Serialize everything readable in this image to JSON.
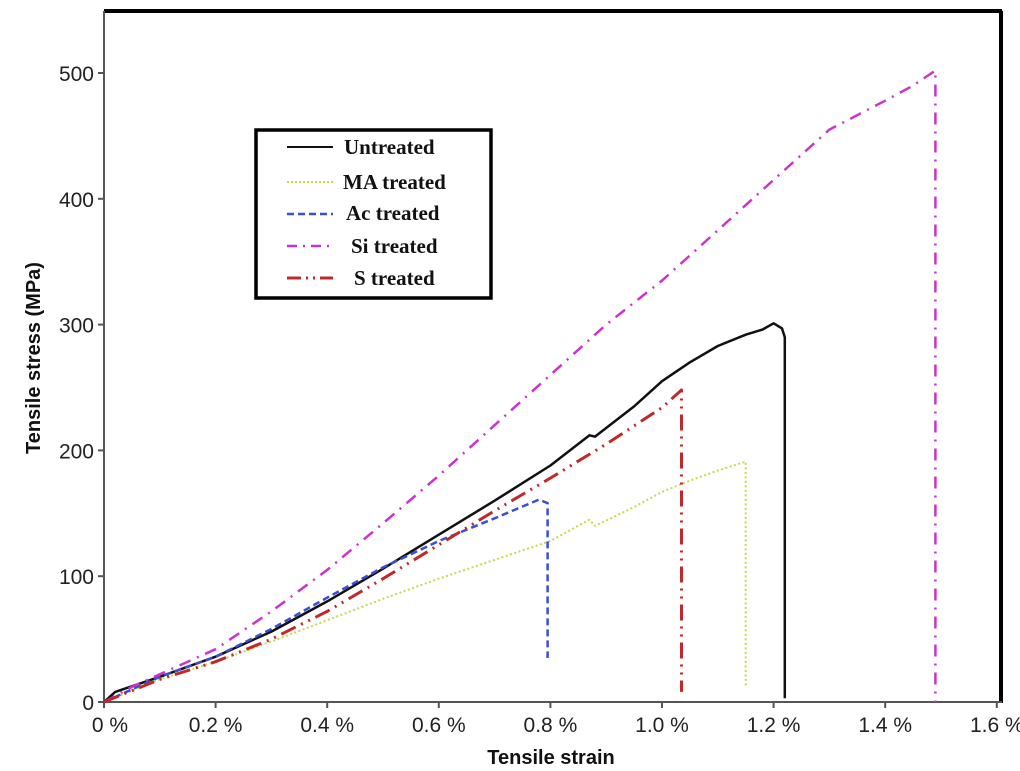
{
  "chart_data": {
    "type": "line",
    "title": "",
    "xlabel": "Tensile strain",
    "ylabel": "Tensile stress (MPa)",
    "xlim": [
      0,
      1.6
    ],
    "ylim": [
      0,
      550
    ],
    "x_unit": "%",
    "x_ticks": [
      "0 %",
      "0.2 %",
      "0.4 %",
      "0.6 %",
      "0.8 %",
      "1.0 %",
      "1.2 %",
      "1.4 %",
      "1.6 %"
    ],
    "x_tick_values": [
      0,
      0.2,
      0.4,
      0.6,
      0.8,
      1.0,
      1.2,
      1.4,
      1.6
    ],
    "y_ticks": [
      "0",
      "100",
      "200",
      "300",
      "400",
      "500"
    ],
    "y_tick_values": [
      0,
      100,
      200,
      300,
      400,
      500
    ],
    "grid": false,
    "legend_position": "upper-left-inside",
    "series": [
      {
        "name": "Untreated",
        "color": "#111111",
        "style": "solid",
        "x": [
          0,
          0.02,
          0.1,
          0.2,
          0.3,
          0.4,
          0.5,
          0.6,
          0.7,
          0.8,
          0.87,
          0.88,
          0.95,
          1.0,
          1.05,
          1.1,
          1.15,
          1.18,
          1.2,
          1.215,
          1.22,
          1.22
        ],
        "y": [
          0,
          8,
          20,
          36,
          56,
          80,
          106,
          133,
          160,
          188,
          212,
          211,
          235,
          255,
          270,
          283,
          292,
          296,
          301,
          297,
          290,
          3
        ]
      },
      {
        "name": "MA treated",
        "color": "#c8d84a",
        "style": "dotted",
        "x": [
          0,
          0.1,
          0.2,
          0.3,
          0.4,
          0.5,
          0.6,
          0.7,
          0.8,
          0.87,
          0.88,
          0.95,
          1.0,
          1.05,
          1.1,
          1.15,
          1.15
        ],
        "y": [
          0,
          18,
          32,
          48,
          65,
          82,
          98,
          113,
          128,
          145,
          140,
          155,
          167,
          176,
          184,
          191,
          12
        ]
      },
      {
        "name": "Ac treated",
        "color": "#3a4fd4",
        "style": "dashed",
        "x": [
          0,
          0.1,
          0.2,
          0.3,
          0.4,
          0.5,
          0.6,
          0.7,
          0.78,
          0.795,
          0.795
        ],
        "y": [
          0,
          20,
          36,
          58,
          83,
          107,
          128,
          146,
          161,
          158,
          35
        ]
      },
      {
        "name": "Si treated",
        "color": "#cc33cc",
        "style": "dash-dot",
        "x": [
          0,
          0.05,
          0.1,
          0.2,
          0.3,
          0.4,
          0.5,
          0.6,
          0.7,
          0.8,
          0.9,
          1.0,
          1.1,
          1.2,
          1.3,
          1.4,
          1.45,
          1.49,
          1.49
        ],
        "y": [
          0,
          12,
          22,
          42,
          72,
          105,
          142,
          180,
          220,
          260,
          300,
          335,
          375,
          415,
          455,
          478,
          490,
          502,
          0
        ]
      },
      {
        "name": "S treated",
        "color": "#c0282a",
        "style": "dash-dot-dot",
        "x": [
          0,
          0.1,
          0.2,
          0.3,
          0.4,
          0.5,
          0.6,
          0.7,
          0.8,
          0.9,
          1.0,
          1.035,
          1.035
        ],
        "y": [
          0,
          18,
          32,
          50,
          72,
          98,
          125,
          152,
          178,
          205,
          234,
          248,
          8
        ]
      }
    ]
  },
  "legend": {
    "items": [
      {
        "label": "Untreated"
      },
      {
        "label": "MA treated"
      },
      {
        "label": "Ac treated"
      },
      {
        "label": "Si treated"
      },
      {
        "label": "S treated"
      }
    ]
  },
  "axes": {
    "xlabel": "Tensile strain",
    "ylabel": "Tensile stress (MPa)"
  }
}
